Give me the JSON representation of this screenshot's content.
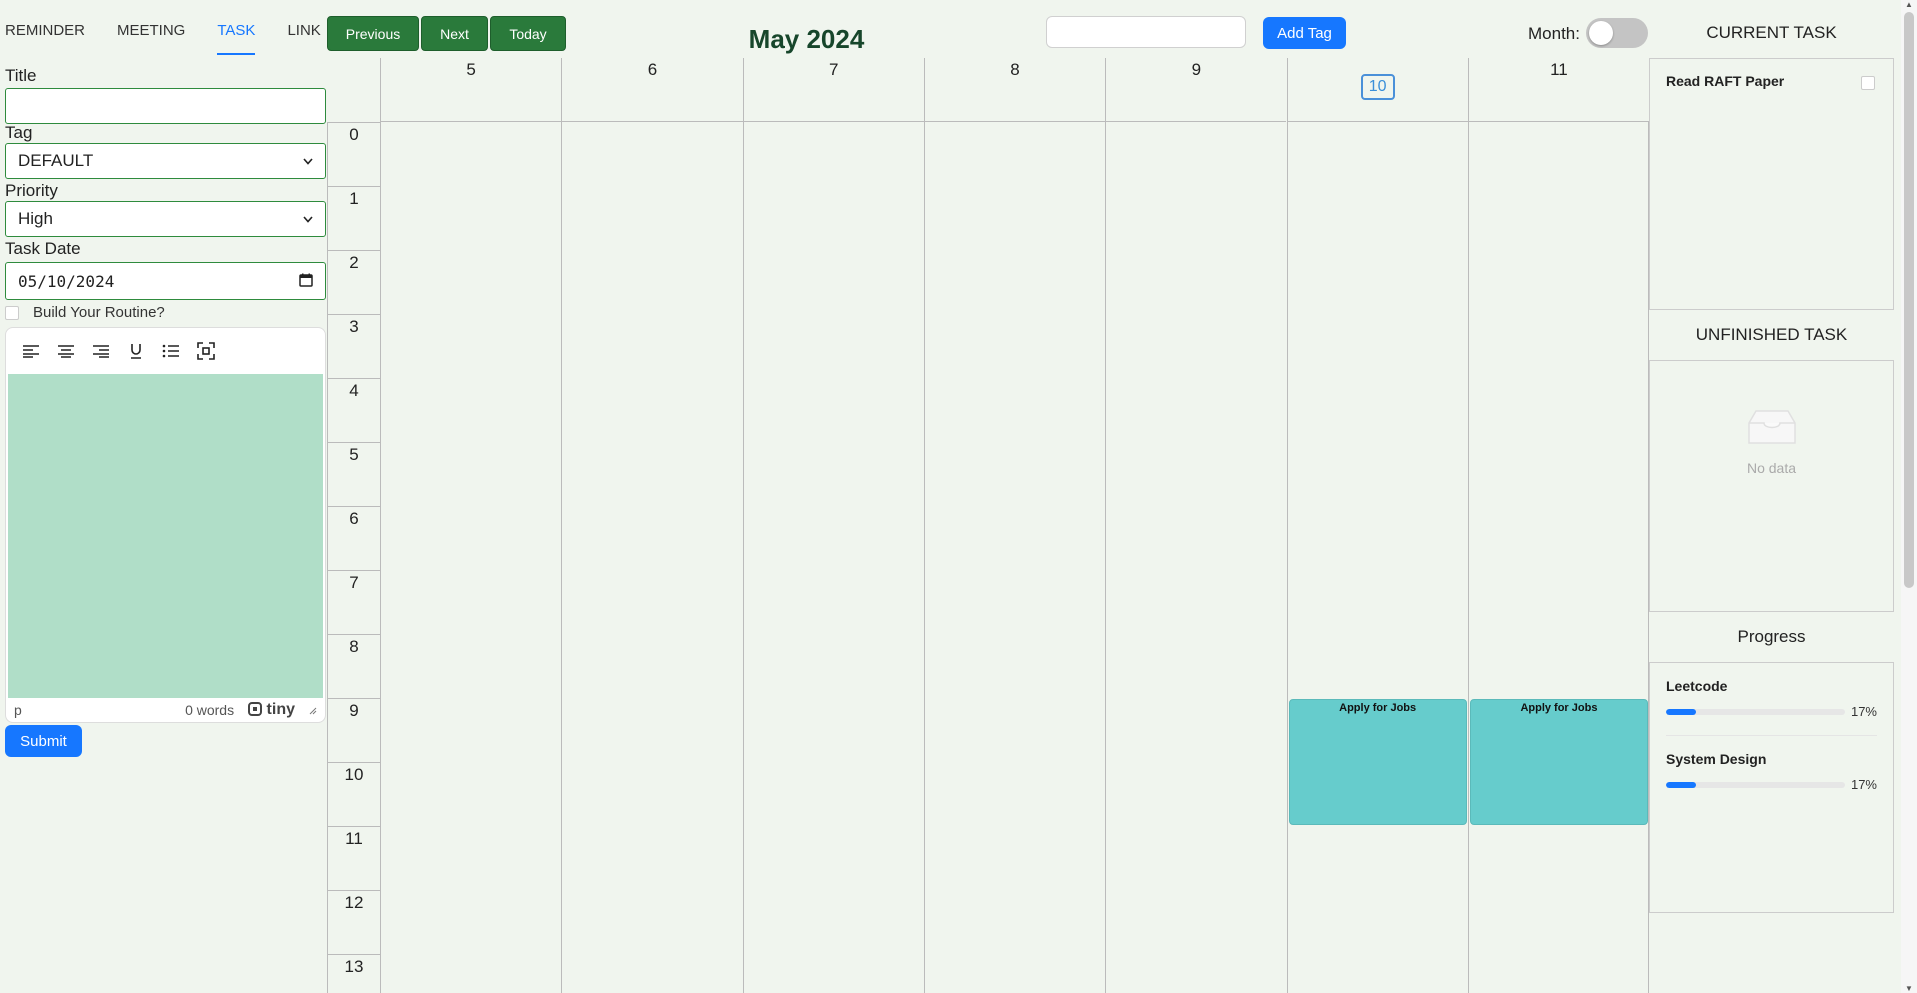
{
  "tabs": [
    {
      "label": "REMINDER"
    },
    {
      "label": "MEETING"
    },
    {
      "label": "TASK"
    },
    {
      "label": "LINK"
    }
  ],
  "nav": {
    "previous": "Previous",
    "next": "Next",
    "today": "Today"
  },
  "title": "May 2024",
  "tag": {
    "input_value": "",
    "add_label": "Add Tag"
  },
  "month_toggle": {
    "label": "Month:",
    "on": false
  },
  "form": {
    "title_label": "Title",
    "title_value": "",
    "tag_label": "Tag",
    "tag_value": "DEFAULT",
    "priority_label": "Priority",
    "priority_value": "High",
    "date_label": "Task Date",
    "date_value": "05/10/2024",
    "routine_label": "Build Your Routine?",
    "editor": {
      "path": "p",
      "words": "0 words",
      "brand": "tiny"
    },
    "submit_label": "Submit"
  },
  "calendar": {
    "days": [
      "5",
      "6",
      "7",
      "8",
      "9",
      "10",
      "11"
    ],
    "today": "10",
    "hours": [
      "0",
      "1",
      "2",
      "3",
      "4",
      "5",
      "6",
      "7",
      "8",
      "9",
      "10",
      "11",
      "12",
      "13"
    ],
    "events": [
      {
        "title": "Apply for Jobs",
        "day": "10",
        "start": 9,
        "end": 11
      },
      {
        "title": "Apply for Jobs",
        "day": "11",
        "start": 9,
        "end": 11
      }
    ]
  },
  "current_task": {
    "title": "CURRENT TASK",
    "items": [
      {
        "label": "Read RAFT Paper",
        "done": false
      }
    ]
  },
  "unfinished_task": {
    "title": "UNFINISHED TASK",
    "empty_text": "No data"
  },
  "progress": {
    "title": "Progress",
    "items": [
      {
        "name": "Leetcode",
        "value": 0.17,
        "label": "17%"
      },
      {
        "name": "System Design",
        "value": 0.17,
        "label": "17%"
      }
    ]
  },
  "colors": {
    "accent": "#1677ff",
    "nav_green": "#2a7a3b",
    "event": "#66cccc",
    "editor_bg": "#b0dec8"
  }
}
